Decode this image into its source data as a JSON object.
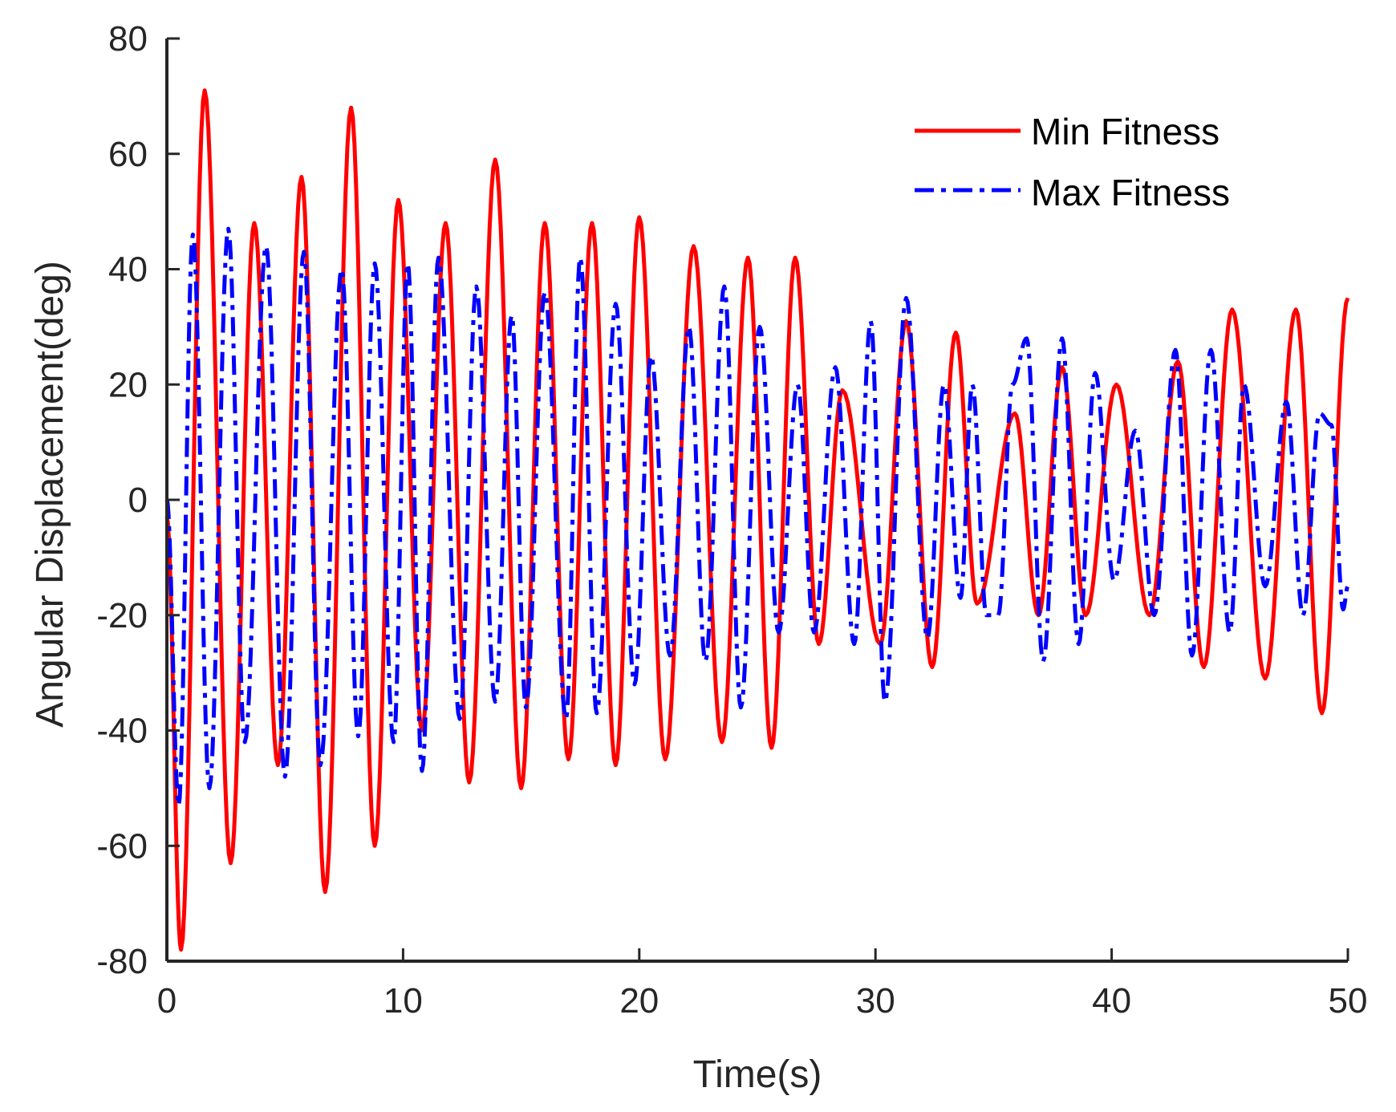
{
  "chart_data": {
    "type": "line",
    "title": "",
    "xlabel": "Time(s)",
    "ylabel": "Angular Displacement(deg)",
    "xlim": [
      0,
      50
    ],
    "ylim": [
      -80,
      80
    ],
    "x_ticks": [
      "0",
      "10",
      "20",
      "30",
      "40",
      "50"
    ],
    "y_ticks": [
      "80",
      "60",
      "40",
      "20",
      "0",
      "-20",
      "-40",
      "-60",
      "-80"
    ],
    "x_tick_values": [
      0,
      10,
      20,
      30,
      40,
      50
    ],
    "y_tick_values": [
      80,
      60,
      40,
      20,
      0,
      -20,
      -40,
      -60,
      -80
    ],
    "grid": false,
    "legend_position": "top-right",
    "series": [
      {
        "name": "Min Fitness",
        "color": "#ff0000",
        "style": "solid",
        "extrema": [
          [
            0,
            -3
          ],
          [
            0.6,
            -78
          ],
          [
            1.6,
            71
          ],
          [
            2.7,
            -63
          ],
          [
            3.7,
            48
          ],
          [
            4.7,
            -46
          ],
          [
            5.7,
            56
          ],
          [
            6.7,
            -68
          ],
          [
            7.8,
            68
          ],
          [
            8.8,
            -60
          ],
          [
            9.8,
            52
          ],
          [
            10.8,
            -40
          ],
          [
            11.8,
            48
          ],
          [
            12.8,
            -49
          ],
          [
            13.9,
            59
          ],
          [
            15.0,
            -50
          ],
          [
            16.0,
            48
          ],
          [
            17.0,
            -45
          ],
          [
            18.0,
            48
          ],
          [
            19.0,
            -46
          ],
          [
            20.0,
            49
          ],
          [
            21.1,
            -45
          ],
          [
            22.3,
            44
          ],
          [
            23.5,
            -42
          ],
          [
            24.6,
            42
          ],
          [
            25.6,
            -43
          ],
          [
            26.6,
            42
          ],
          [
            27.6,
            -25
          ],
          [
            28.6,
            19
          ],
          [
            30.2,
            -25
          ],
          [
            31.3,
            31
          ],
          [
            32.4,
            -29
          ],
          [
            33.4,
            29
          ],
          [
            34.3,
            -18
          ],
          [
            35.9,
            15
          ],
          [
            36.9,
            -20
          ],
          [
            37.9,
            23
          ],
          [
            38.9,
            -20
          ],
          [
            40.2,
            20
          ],
          [
            41.6,
            -20
          ],
          [
            42.8,
            24
          ],
          [
            43.9,
            -29
          ],
          [
            45.1,
            33
          ],
          [
            46.5,
            -31
          ],
          [
            47.8,
            33
          ],
          [
            48.9,
            -37
          ],
          [
            50.0,
            35
          ]
        ]
      },
      {
        "name": "Max Fitness",
        "color": "#0000ff",
        "style": "dash-dot",
        "extrema": [
          [
            0,
            0
          ],
          [
            0.5,
            -53
          ],
          [
            1.1,
            46
          ],
          [
            1.8,
            -50
          ],
          [
            2.6,
            47
          ],
          [
            3.3,
            -42
          ],
          [
            4.2,
            44
          ],
          [
            5.0,
            -48
          ],
          [
            5.8,
            43
          ],
          [
            6.5,
            -46
          ],
          [
            7.4,
            40
          ],
          [
            8.1,
            -41
          ],
          [
            8.8,
            41
          ],
          [
            9.6,
            -42
          ],
          [
            10.2,
            41
          ],
          [
            10.8,
            -47
          ],
          [
            11.5,
            42
          ],
          [
            12.4,
            -38
          ],
          [
            13.1,
            37
          ],
          [
            13.9,
            -35
          ],
          [
            14.6,
            32
          ],
          [
            15.2,
            -36
          ],
          [
            16.0,
            36
          ],
          [
            16.9,
            -38
          ],
          [
            17.5,
            42
          ],
          [
            18.2,
            -37
          ],
          [
            19.0,
            34
          ],
          [
            19.8,
            -32
          ],
          [
            20.5,
            25
          ],
          [
            21.3,
            -27
          ],
          [
            22.1,
            30
          ],
          [
            22.8,
            -28
          ],
          [
            23.6,
            37
          ],
          [
            24.3,
            -36
          ],
          [
            25.1,
            30
          ],
          [
            25.9,
            -23
          ],
          [
            26.7,
            20
          ],
          [
            27.4,
            -23
          ],
          [
            28.3,
            23
          ],
          [
            29.1,
            -25
          ],
          [
            29.8,
            31
          ],
          [
            30.4,
            -35
          ],
          [
            31.3,
            35
          ],
          [
            32.2,
            -24
          ],
          [
            32.9,
            20
          ],
          [
            33.6,
            -17
          ],
          [
            34.1,
            20
          ],
          [
            34.7,
            -20
          ],
          [
            35.2,
            -20
          ],
          [
            35.8,
            20
          ],
          [
            36.4,
            28
          ],
          [
            37.1,
            -28
          ],
          [
            37.9,
            28
          ],
          [
            38.6,
            -25
          ],
          [
            39.3,
            22
          ],
          [
            40.1,
            -14
          ],
          [
            41.0,
            12
          ],
          [
            41.8,
            -20
          ],
          [
            42.7,
            26
          ],
          [
            43.4,
            -27
          ],
          [
            44.2,
            26
          ],
          [
            45.0,
            -23
          ],
          [
            45.6,
            20
          ],
          [
            46.5,
            -15
          ],
          [
            47.4,
            17
          ],
          [
            48.1,
            -20
          ],
          [
            48.8,
            15
          ],
          [
            49.3,
            13
          ],
          [
            49.8,
            -19
          ],
          [
            50.0,
            -15
          ]
        ]
      }
    ]
  }
}
